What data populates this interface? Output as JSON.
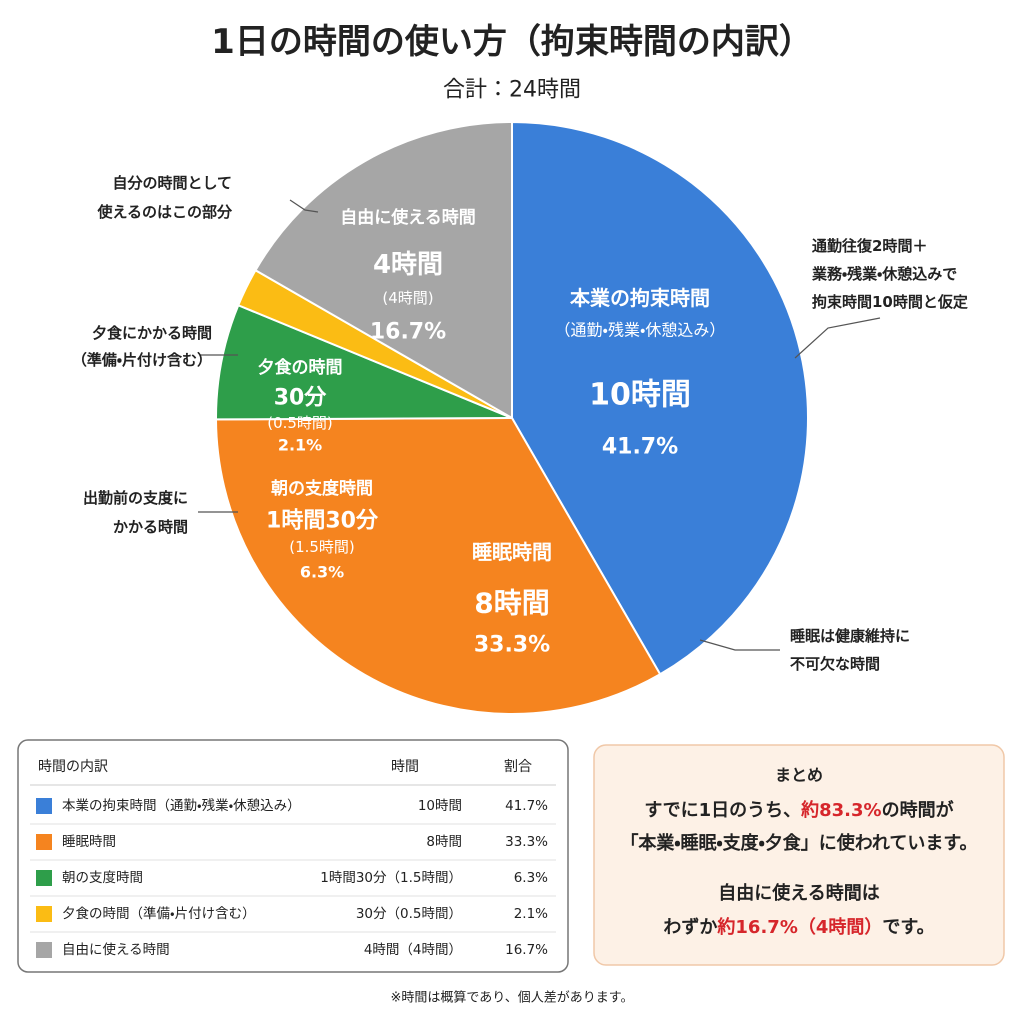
{
  "chart_data": {
    "type": "pie",
    "title": "1日の時間の使い方（拘束時間の内訳）",
    "subtitle": "合計：24時間",
    "categories": [
      "本業の拘束時間",
      "睡眠時間",
      "朝の支度時間",
      "夕食の時間",
      "自由に使える時間"
    ],
    "slice_labels": [
      [
        "（通勤・残業・休憩込み）",
        "10時間"
      ],
      [
        "8時間"
      ],
      [
        "1時間30分",
        "(1.5時間)"
      ],
      [
        "30分",
        "(0.5時間)"
      ],
      [
        "4時間",
        "(4時間)"
      ]
    ],
    "values": [
      41.7,
      33.3,
      6.3,
      2.1,
      16.7
    ],
    "value_labels": [
      "41.7%",
      "33.3%",
      "6.3%",
      "2.1%",
      "16.7%"
    ],
    "colors": [
      "#3a7fd8",
      "#f5841f",
      "#2e9e4a",
      "#fbbc14",
      "#a6a6a6"
    ],
    "annotations": [
      [
        "通勤往復2時間＋",
        "業務・残業・休憩込みで",
        "拘束時間10時間と仮定"
      ],
      [
        "睡眠は健康維持に",
        "不可欠な時間"
      ],
      [
        "出勤前の支度に",
        "かかる時間"
      ],
      [
        "夕食にかかる時間",
        "（準備・片付け含む）"
      ],
      [
        "自分の時間として",
        "使えるのはこの部分"
      ]
    ]
  },
  "table": {
    "header": [
      "時間の内訳",
      "時間",
      "割合"
    ],
    "rows": [
      [
        "本業の拘束時間（通勤・残業・休憩込み）",
        "10時間",
        "41.7%"
      ],
      [
        "睡眠時間",
        "8時間",
        "33.3%"
      ],
      [
        "朝の支度時間",
        "1時間30分（1.5時間）",
        "6.3%"
      ],
      [
        "夕食の時間（準備・片付け含む）",
        "30分（0.5時間）",
        "2.1%"
      ],
      [
        "自由に使える時間",
        "4時間（4時間）",
        "16.7%"
      ]
    ]
  },
  "summary": {
    "title": "まとめ",
    "lines": [
      [
        {
          "text": "すでに1日のうち、"
        },
        {
          "text": "約83.3%",
          "color": "#d6262b"
        },
        {
          "text": "の時間が"
        }
      ],
      [
        {
          "text": "「本業・睡眠・支度・夕食」に使われています。"
        }
      ],
      [
        {
          "text": "自由に使える時間は"
        }
      ],
      [
        {
          "text": "わずか"
        },
        {
          "text": "約16.7%（4時間）",
          "color": "#d6262b"
        },
        {
          "text": "です。"
        }
      ]
    ]
  },
  "footnote": "※時間は概算であり、個人差があります。"
}
